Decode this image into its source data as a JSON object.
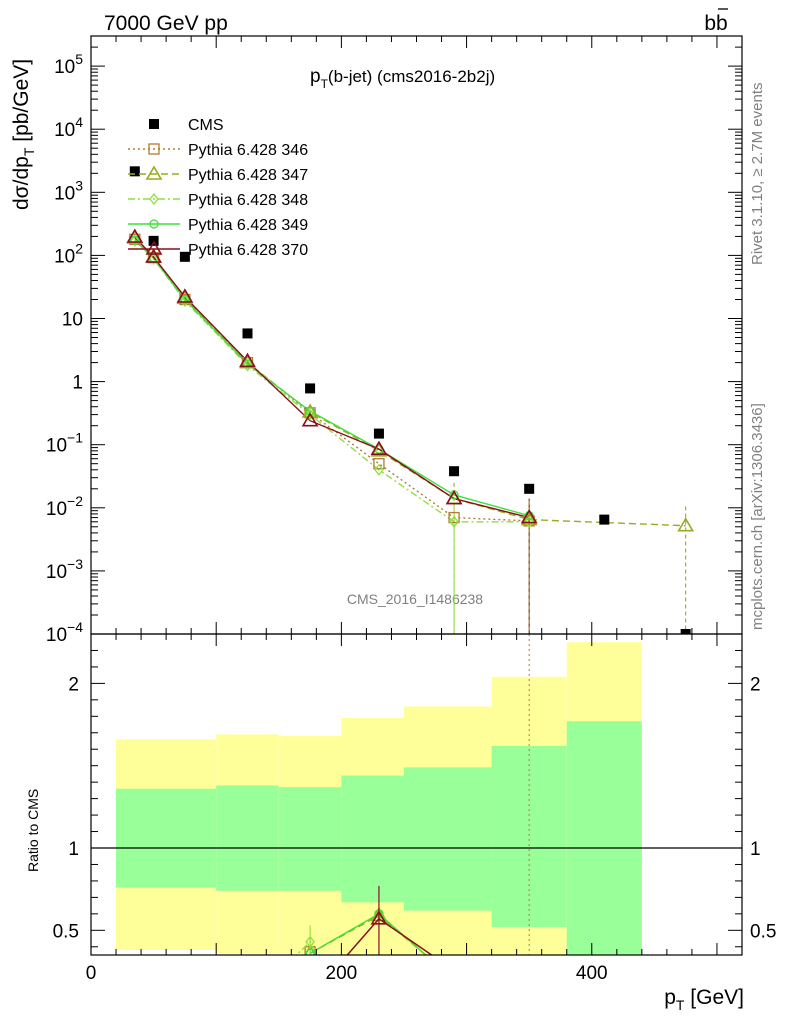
{
  "header": {
    "energy_label": "7000 GeV pp",
    "process_b": "b",
    "process_bbar": "b"
  },
  "main_title": {
    "pre": "p",
    "sub": "T",
    "post": "(b-jet) (cms2016-2b2j)"
  },
  "ylabel": {
    "a": "dσ/dp",
    "sub": "T",
    "b": " [pb/GeV]"
  },
  "xlabel": {
    "a": "p",
    "sub": "T",
    "b": " [GeV]"
  },
  "ratio_ylabel": "Ratio to CMS",
  "watermark": "CMS_2016_I1486238",
  "side_text_top": "Rivet 3.1.10, ≥ 2.7M events",
  "side_text_bottom": "mcplots.cern.ch [arXiv:1306.3436]",
  "colors": {
    "data": "#000000",
    "p346": "#b07d35",
    "p347": "#9aab20",
    "p348": "#8fe040",
    "p349": "#3ee03a",
    "p370": "#8b0e1e",
    "band_inner": "#99ff99",
    "band_outer": "#ffff99"
  },
  "chart_data": [
    {
      "type": "scatter",
      "panel": "main",
      "yscale": "log",
      "xlim": [
        0,
        520
      ],
      "ylim": [
        0.0001,
        300000
      ],
      "x_major_ticks": [
        0,
        200,
        400
      ],
      "y_tick_labels": [
        {
          "v": 100000,
          "base": "10",
          "exp": "5"
        },
        {
          "v": 10000,
          "base": "10",
          "exp": "4"
        },
        {
          "v": 1000,
          "base": "10",
          "exp": "3"
        },
        {
          "v": 100,
          "base": "10",
          "exp": "2"
        },
        {
          "v": 10,
          "base": "10",
          "exp": ""
        },
        {
          "v": 1,
          "base": "1",
          "exp": ""
        },
        {
          "v": 0.1,
          "base": "10",
          "exp": "−1"
        },
        {
          "v": 0.01,
          "base": "10",
          "exp": "−2"
        },
        {
          "v": 0.001,
          "base": "10",
          "exp": "−3"
        },
        {
          "v": 0.0001,
          "base": "10",
          "exp": "−4"
        }
      ],
      "series": [
        {
          "name": "CMS",
          "key": "data",
          "x": [
            35,
            50,
            75,
            125,
            175,
            230,
            290,
            350,
            410,
            475
          ],
          "y": [
            2150,
            170,
            95,
            5.8,
            0.78,
            0.15,
            0.038,
            0.02,
            0.0065,
            8.5e-05
          ]
        },
        {
          "name": "Pythia 6.428 346",
          "key": "p346",
          "x": [
            35,
            50,
            75,
            125,
            175,
            230,
            290,
            350
          ],
          "y": [
            180,
            92,
            20,
            2.0,
            0.32,
            0.05,
            0.007,
            0.0062
          ]
        },
        {
          "name": "Pythia 6.428 347",
          "key": "p347",
          "x": [
            35,
            50,
            75,
            125,
            175,
            230,
            290,
            350,
            475
          ],
          "y": [
            190,
            95,
            21,
            2.0,
            0.33,
            0.08,
            0.014,
            0.0065,
            0.0052
          ]
        },
        {
          "name": "Pythia 6.428 348",
          "key": "p348",
          "x": [
            35,
            50,
            75,
            125,
            175,
            230,
            290,
            350
          ],
          "y": [
            170,
            88,
            19,
            1.8,
            0.3,
            0.04,
            0.006,
            0.006
          ]
        },
        {
          "name": "Pythia 6.428 349",
          "key": "p349",
          "x": [
            35,
            50,
            75,
            125,
            175,
            230,
            290,
            350
          ],
          "y": [
            175,
            90,
            20,
            1.9,
            0.34,
            0.085,
            0.016,
            0.0075
          ]
        },
        {
          "name": "Pythia 6.428 370",
          "key": "p370",
          "x": [
            35,
            50,
            75,
            125,
            175,
            230,
            290,
            350
          ],
          "y": [
            195,
            94,
            22,
            2.1,
            0.24,
            0.085,
            0.014,
            0.007
          ]
        }
      ]
    },
    {
      "type": "line",
      "panel": "ratio",
      "xlim": [
        0,
        520
      ],
      "ylim": [
        0.35,
        2.3
      ],
      "x_tick_labels": [
        0,
        200,
        400
      ],
      "y_tick_labels": [
        0.5,
        1,
        2
      ],
      "bands": {
        "edges": [
          20,
          100,
          150,
          200,
          250,
          320,
          380,
          440
        ],
        "inner_lo": [
          0.76,
          0.74,
          0.74,
          0.67,
          0.62,
          0.52,
          0.35
        ],
        "inner_hi": [
          1.36,
          1.38,
          1.37,
          1.44,
          1.49,
          1.62,
          1.77
        ],
        "outer_lo": [
          0.38,
          0.36,
          0.36,
          0.35,
          0.35,
          0.35,
          0.35
        ],
        "outer_hi": [
          1.66,
          1.69,
          1.68,
          1.79,
          1.86,
          2.04,
          2.25
        ]
      },
      "series": [
        {
          "key": "p346",
          "x": [
            175
          ],
          "y": [
            0.37
          ]
        },
        {
          "key": "p347",
          "x": [
            175,
            230
          ],
          "y": [
            0.36,
            0.59
          ]
        },
        {
          "key": "p348",
          "x": [
            175
          ],
          "y": [
            0.43
          ]
        },
        {
          "key": "p349",
          "x": [
            175,
            230
          ],
          "y": [
            0.36,
            0.6
          ]
        },
        {
          "key": "p370",
          "x": [
            230
          ],
          "y": [
            0.57
          ]
        }
      ]
    }
  ]
}
